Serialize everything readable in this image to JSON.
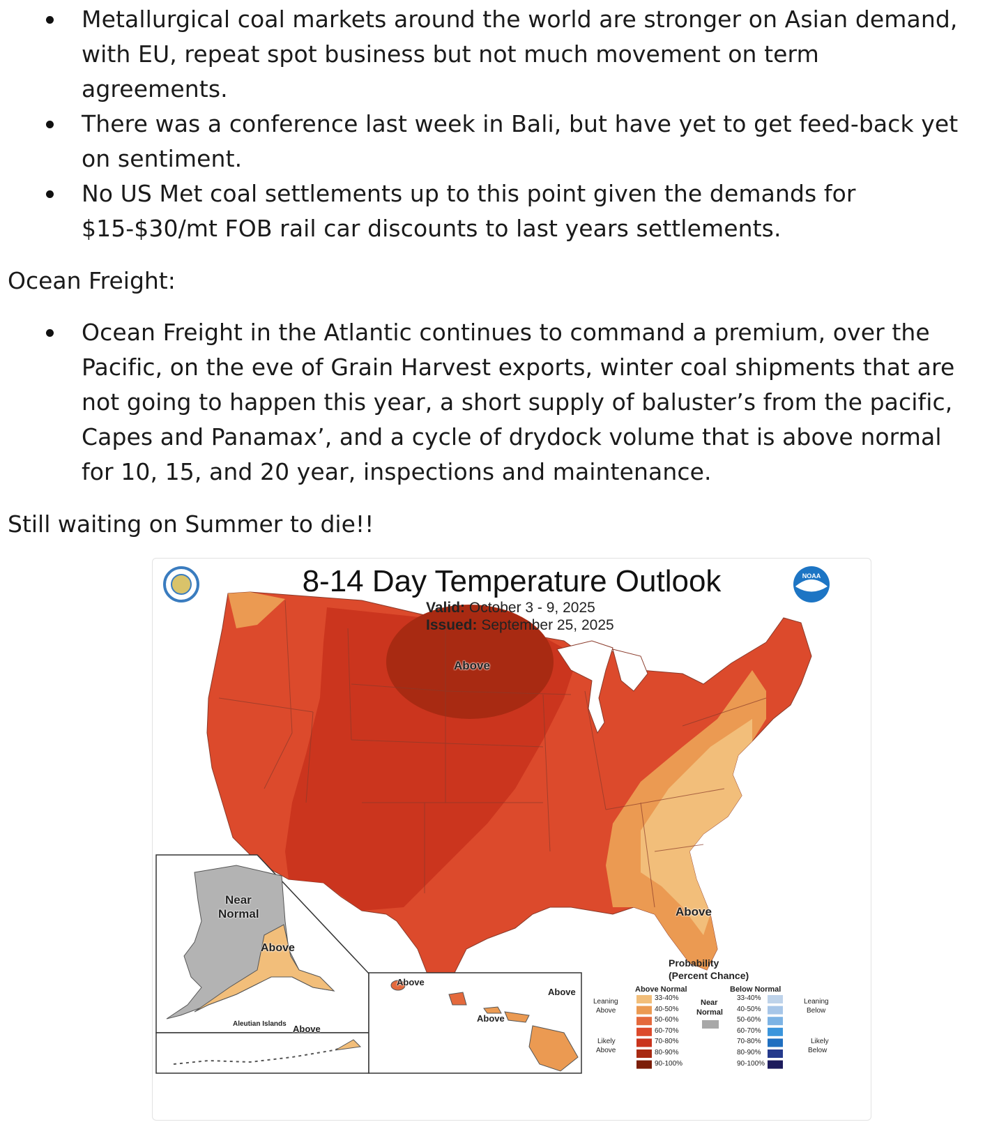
{
  "bullets_top": [
    "Metallurgical coal markets around the world are stronger on Asian demand, with EU, repeat spot business but not much movement on term agreements.",
    "There was a conference last week in Bali, but have yet to get feed-back yet on sentiment.",
    "No US Met coal settlements up to this point given the demands for $15-$30/mt FOB rail car discounts to last years settlements."
  ],
  "section_heading": "Ocean Freight:",
  "bullets_freight": [
    "Ocean Freight in the Atlantic continues to command a premium, over the Pacific, on the eve of Grain Harvest exports, winter coal shipments that are not going to happen this year, a short supply of baluster’s from the pacific, Capes and Panamax’, and a cycle of drydock volume that is above normal for 10, 15, and 20 year, inspections and maintenance."
  ],
  "closing_line": "Still waiting on Summer to die!!",
  "map": {
    "title": "8-14 Day Temperature Outlook",
    "valid_label": "Valid:",
    "valid_value": "October 3 - 9, 2025",
    "issued_label": "Issued:",
    "issued_value": "September 25, 2025",
    "noaa_logo_text": "NOAA",
    "region_labels": {
      "conus_core": "Above",
      "florida": "Above",
      "alaska_near_1": "Near",
      "alaska_near_2": "Normal",
      "alaska_above": "Above",
      "aleutian_title": "Aleutian Islands",
      "aleutian_above": "Above",
      "hawaii_above_1": "Above",
      "hawaii_above_2": "Above",
      "hawaii_above_3": "Above"
    },
    "legend": {
      "title_1": "Probability",
      "title_2": "(Percent Chance)",
      "above_header": "Above Normal",
      "near_header_1": "Near",
      "near_header_2": "Normal",
      "below_header": "Below Normal",
      "leaning_above_1": "Leaning",
      "leaning_above_2": "Above",
      "likely_above_1": "Likely",
      "likely_above_2": "Above",
      "leaning_below_1": "Leaning",
      "leaning_below_2": "Below",
      "likely_below_1": "Likely",
      "likely_below_2": "Below",
      "above_bins": [
        {
          "label": "33-40%",
          "color": "#f2be7a"
        },
        {
          "label": "40-50%",
          "color": "#eb9a52"
        },
        {
          "label": "50-60%",
          "color": "#e4693c"
        },
        {
          "label": "60-70%",
          "color": "#dc4a2c"
        },
        {
          "label": "70-80%",
          "color": "#c9341d"
        },
        {
          "label": "80-90%",
          "color": "#a82a12"
        },
        {
          "label": "90-100%",
          "color": "#7c1e08"
        }
      ],
      "near_color": "#a8a8a8",
      "below_bins": [
        {
          "label": "33-40%",
          "color": "#bed3ea"
        },
        {
          "label": "40-50%",
          "color": "#a7c6e8"
        },
        {
          "label": "50-60%",
          "color": "#7cb3e4"
        },
        {
          "label": "60-70%",
          "color": "#3b95dc"
        },
        {
          "label": "70-80%",
          "color": "#1f6fc0"
        },
        {
          "label": "80-90%",
          "color": "#253a8c"
        },
        {
          "label": "90-100%",
          "color": "#1d1b5c"
        }
      ]
    }
  }
}
